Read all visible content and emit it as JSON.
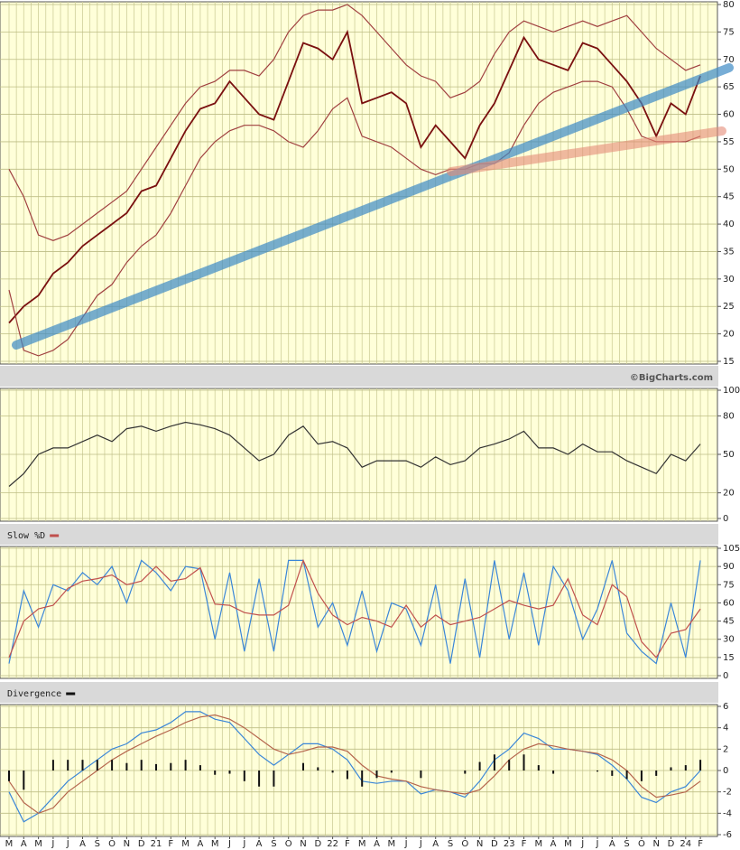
{
  "chart_data": [
    {
      "type": "line",
      "source": "©BigCharts.com",
      "ylim": [
        15,
        80
      ],
      "yticks": [
        15,
        20,
        25,
        30,
        35,
        40,
        45,
        50,
        55,
        60,
        65,
        70,
        75,
        80
      ],
      "grid": true,
      "series": [
        {
          "color": "#7a1010",
          "values": [
            22,
            25,
            27,
            31,
            33,
            36,
            38,
            40,
            42,
            46,
            47,
            52,
            57,
            61,
            62,
            66,
            63,
            60,
            59,
            66,
            73,
            72,
            70,
            75,
            62,
            63,
            64,
            62,
            54,
            58,
            55,
            52,
            58,
            62,
            68,
            74,
            70,
            69,
            68,
            73,
            72,
            69,
            66,
            62,
            56,
            62,
            60,
            67
          ]
        },
        {
          "color": "#a04040",
          "values": [
            50,
            45,
            38,
            37,
            38,
            40,
            42,
            44,
            46,
            50,
            54,
            58,
            62,
            65,
            66,
            68,
            68,
            67,
            70,
            75,
            78,
            79,
            79,
            80,
            78,
            75,
            72,
            69,
            67,
            66,
            63,
            64,
            66,
            71,
            75,
            77,
            76,
            75,
            76,
            77,
            76,
            77,
            78,
            75,
            72,
            70,
            68,
            69
          ]
        },
        {
          "color": "#a04040",
          "values": [
            28,
            17,
            16,
            17,
            19,
            23,
            27,
            29,
            33,
            36,
            38,
            42,
            47,
            52,
            55,
            57,
            58,
            58,
            57,
            55,
            54,
            57,
            61,
            63,
            56,
            55,
            54,
            52,
            50,
            49,
            50,
            50,
            51,
            51,
            53,
            58,
            62,
            64,
            65,
            66,
            66,
            65,
            61,
            56,
            55,
            55,
            55,
            56
          ]
        }
      ]
    },
    {
      "type": "line",
      "ylim": [
        0,
        100
      ],
      "yticks": [
        0,
        20,
        50,
        80,
        100
      ],
      "grid": true,
      "series": [
        {
          "color": "#333333",
          "values": [
            25,
            35,
            50,
            55,
            55,
            60,
            65,
            60,
            70,
            72,
            68,
            72,
            75,
            73,
            70,
            65,
            55,
            45,
            50,
            65,
            72,
            58,
            60,
            55,
            40,
            45,
            45,
            45,
            40,
            48,
            42,
            45,
            55,
            58,
            62,
            68,
            55,
            55,
            50,
            58,
            52,
            52,
            45,
            40,
            35,
            50,
            45,
            58
          ]
        }
      ]
    },
    {
      "type": "line",
      "ylim": [
        0,
        105
      ],
      "yticks": [
        0,
        15,
        30,
        45,
        60,
        75,
        90,
        105
      ],
      "grid": true,
      "series": [
        {
          "color": "#3a86d8",
          "values": [
            10,
            70,
            40,
            75,
            70,
            85,
            75,
            90,
            60,
            95,
            85,
            70,
            90,
            88,
            30,
            85,
            20,
            80,
            20,
            95,
            95,
            40,
            60,
            25,
            70,
            20,
            60,
            55,
            25,
            75,
            10,
            80,
            15,
            95,
            30,
            85,
            25,
            90,
            70,
            30,
            55,
            95,
            35,
            20,
            10,
            60,
            15,
            95
          ]
        },
        {
          "name": "Slow %D",
          "color": "#c0504d",
          "values": [
            15,
            45,
            55,
            58,
            72,
            78,
            80,
            83,
            75,
            78,
            90,
            78,
            80,
            89,
            59,
            58,
            52,
            50,
            50,
            58,
            95,
            68,
            50,
            42,
            48,
            45,
            40,
            58,
            40,
            50,
            42,
            45,
            48,
            55,
            62,
            58,
            55,
            58,
            80,
            50,
            42,
            75,
            65,
            28,
            15,
            35,
            38,
            55
          ]
        }
      ]
    },
    {
      "type": "line",
      "ylim": [
        -6,
        6
      ],
      "yticks": [
        -6,
        -4,
        -2,
        0,
        2,
        4,
        6
      ],
      "grid": true,
      "categories": [
        "M",
        "A",
        "M",
        "J",
        "J",
        "A",
        "S",
        "O",
        "N",
        "D",
        "21",
        "F",
        "M",
        "A",
        "M",
        "J",
        "J",
        "A",
        "S",
        "O",
        "N",
        "D",
        "22",
        "F",
        "M",
        "A",
        "M",
        "J",
        "J",
        "A",
        "S",
        "O",
        "N",
        "D",
        "23",
        "F",
        "M",
        "A",
        "M",
        "J",
        "J",
        "A",
        "S",
        "O",
        "N",
        "D",
        "24",
        "F"
      ],
      "series": [
        {
          "color": "#3a86d8",
          "values": [
            -2,
            -4.8,
            -4,
            -2.5,
            -1,
            0,
            1,
            2,
            2.5,
            3.5,
            3.8,
            4.5,
            5.5,
            5.5,
            4.8,
            4.5,
            3,
            1.5,
            0.5,
            1.5,
            2.5,
            2.5,
            2,
            1,
            -1,
            -1.2,
            -1,
            -1,
            -2.2,
            -1.8,
            -2,
            -2.5,
            -1,
            1,
            2,
            3.5,
            3,
            2,
            2,
            1.8,
            1.5,
            0.5,
            -0.8,
            -2.5,
            -3,
            -2,
            -1.5,
            0
          ]
        },
        {
          "color": "#b5654d",
          "values": [
            -1,
            -3,
            -4,
            -3.5,
            -2,
            -1,
            0,
            1,
            1.8,
            2.5,
            3.2,
            3.8,
            4.5,
            5,
            5.2,
            4.8,
            4,
            3,
            2,
            1.5,
            1.8,
            2.2,
            2.2,
            1.8,
            0.5,
            -0.5,
            -0.8,
            -1,
            -1.5,
            -1.8,
            -2,
            -2.2,
            -1.8,
            -0.5,
            1,
            2,
            2.5,
            2.3,
            2,
            1.8,
            1.6,
            1,
            0,
            -1.5,
            -2.5,
            -2.3,
            -2,
            -1
          ]
        },
        {
          "name": "Divergence",
          "color": "#111111",
          "kind": "bar",
          "values": [
            -1,
            -1.8,
            0,
            1,
            1,
            1,
            1,
            1,
            0.7,
            1,
            0.6,
            0.7,
            1,
            0.5,
            -0.4,
            -0.3,
            -1,
            -1.5,
            -1.5,
            0,
            0.7,
            0.3,
            -0.2,
            -0.8,
            -1.5,
            -0.7,
            -0.2,
            0,
            -0.7,
            0,
            0,
            -0.3,
            0.8,
            1.5,
            1,
            1.5,
            0.5,
            -0.3,
            0,
            0,
            -0.1,
            -0.5,
            -0.8,
            -1,
            -0.5,
            0.3,
            0.5,
            1
          ]
        }
      ]
    }
  ]
}
